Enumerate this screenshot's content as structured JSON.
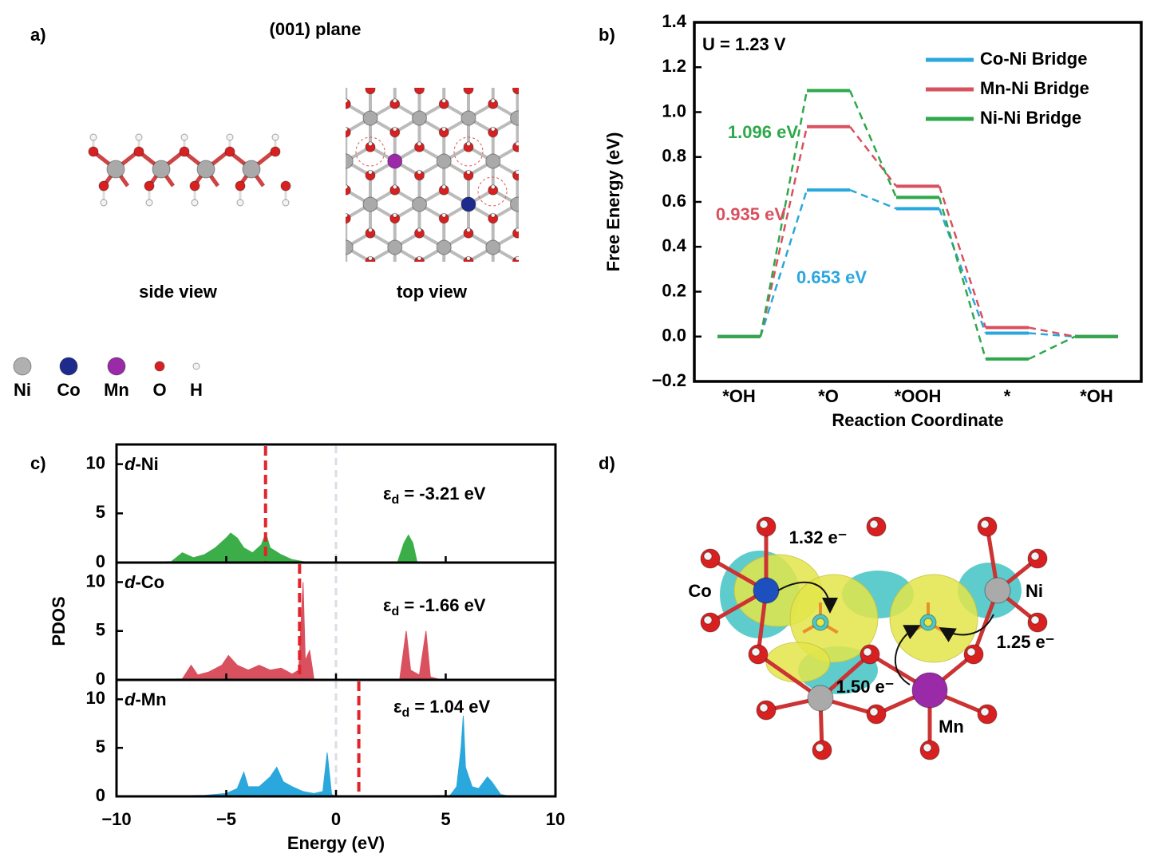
{
  "panel_labels": [
    "a)",
    "b)",
    "c)",
    "d)"
  ],
  "panel_a": {
    "title": "(001) plane",
    "views": [
      "side view",
      "top view"
    ],
    "legend": [
      "Ni",
      "Co",
      "Mn",
      "O",
      "H"
    ]
  },
  "panel_d": {
    "labels": [
      "Co",
      "Ni",
      "Mn"
    ],
    "charges": [
      "1.32 e⁻",
      "1.50 e⁻",
      "1.25 e⁻"
    ]
  },
  "chart_data": [
    {
      "type": "step",
      "text": "U = 1.23 V",
      "xlabel": "Reaction Coordinate",
      "ylabel": "Free Energy (eV)",
      "categories": [
        "*OH",
        "*O",
        "*OOH",
        "*",
        "*OH"
      ],
      "series": [
        {
          "name": "Co-Ni Bridge",
          "color": "#2aa7dc",
          "values": [
            0,
            0.653,
            0.57,
            0.015,
            0
          ]
        },
        {
          "name": "Mn-Ni Bridge",
          "color": "#d9505f",
          "values": [
            0,
            0.935,
            0.67,
            0.04,
            0
          ]
        },
        {
          "name": "Ni-Ni Bridge",
          "color": "#2ea84a",
          "values": [
            0,
            1.096,
            0.62,
            -0.1,
            0
          ]
        }
      ],
      "annotations": [
        {
          "text": "1.096 eV",
          "color": "#2ea84a"
        },
        {
          "text": "0.935 eV",
          "color": "#d9505f"
        },
        {
          "text": "0.653 eV",
          "color": "#2aa7dc"
        }
      ],
      "ylim": [
        -0.2,
        1.4
      ],
      "yticks": [
        {
          "value": -0.2,
          "label": "−0.2"
        },
        {
          "value": 0,
          "label": "0.0"
        },
        0.2,
        0.4,
        0.6,
        0.8,
        {
          "value": 1,
          "label": "1.0"
        },
        1.2,
        1.4
      ],
      "legend": "upper right"
    },
    {
      "type": "area",
      "orbital": "d",
      "element": "-Ni",
      "color": "#3cae49",
      "x": [
        -9,
        -7.5,
        -7,
        -6.5,
        -6,
        -5.5,
        -5,
        -4.8,
        -4.5,
        -4.2,
        -3.8,
        -3.4,
        -3.2,
        -3,
        -2.5,
        -2,
        -1.5,
        -1,
        2.8,
        3.1,
        3.3,
        3.5,
        3.7,
        10
      ],
      "values": [
        0,
        0.1,
        1,
        0.5,
        0.8,
        1.5,
        2.5,
        3,
        2.5,
        1.5,
        1,
        1.8,
        3,
        1.5,
        0.8,
        0.3,
        0.1,
        0,
        0,
        2,
        2.8,
        2,
        0,
        0
      ],
      "ylim": [
        0,
        12
      ],
      "yticks": [
        0,
        5,
        10
      ],
      "band_center": -3.21,
      "band_center_label": {
        "symbol": "ε",
        "sub": "d",
        "text": " = -3.21 eV"
      },
      "fermi_level": 0
    },
    {
      "type": "area",
      "orbital": "d",
      "element": "-Co",
      "color": "#d9505f",
      "ylabel": "PDOS",
      "x": [
        -9,
        -7,
        -6.6,
        -6.3,
        -5.8,
        -5.2,
        -4.9,
        -4.5,
        -4,
        -3.5,
        -3,
        -2.5,
        -2,
        -1.7,
        -1.5,
        -1.4,
        -1.2,
        -1,
        2.9,
        3.2,
        3.4,
        3.8,
        4.1,
        4.3,
        4.8,
        10
      ],
      "values": [
        0,
        0.1,
        1.5,
        0.5,
        0.8,
        1.5,
        2.5,
        1.5,
        1,
        1.5,
        1,
        1.2,
        0.6,
        1,
        10,
        2,
        3,
        0,
        0,
        5,
        1,
        0.5,
        5,
        0.3,
        0,
        0
      ],
      "ylim": [
        0,
        12
      ],
      "yticks": [
        0,
        5,
        10
      ],
      "band_center": -1.66,
      "band_center_label": {
        "symbol": "ε",
        "sub": "d",
        "text": " = -1.66 eV"
      },
      "fermi_level": 0
    },
    {
      "type": "area",
      "orbital": "d",
      "element": "-Mn",
      "color": "#2aa7dc",
      "xlabel": "Energy (eV)",
      "x": [
        -9,
        -6,
        -5,
        -4.5,
        -4.2,
        -4,
        -3.5,
        -3,
        -2.7,
        -2.4,
        -2,
        -1.5,
        -1,
        -0.6,
        -0.4,
        -0.2,
        0,
        5.2,
        5.5,
        5.7,
        5.8,
        5.9,
        6.2,
        6.5,
        6.9,
        7.1,
        7.5,
        8,
        10
      ],
      "values": [
        0,
        0.1,
        0.3,
        0.8,
        2.5,
        1,
        1,
        2,
        3,
        1.5,
        1,
        0.5,
        0.3,
        0.5,
        4.5,
        0.2,
        0,
        0.1,
        1,
        5,
        8.3,
        3,
        1,
        0.8,
        2,
        1.5,
        0.2,
        0,
        0
      ],
      "ylim": [
        0,
        12
      ],
      "yticks": [
        0,
        5,
        10
      ],
      "xlim": [
        -10,
        10
      ],
      "xticks": [
        {
          "value": -10,
          "label": "−10"
        },
        {
          "value": -5,
          "label": "−5"
        },
        0,
        5,
        10
      ],
      "band_center": 1.04,
      "band_center_label": {
        "symbol": "ε",
        "sub": "d",
        "text": " = 1.04 eV"
      },
      "fermi_level": 0
    }
  ]
}
